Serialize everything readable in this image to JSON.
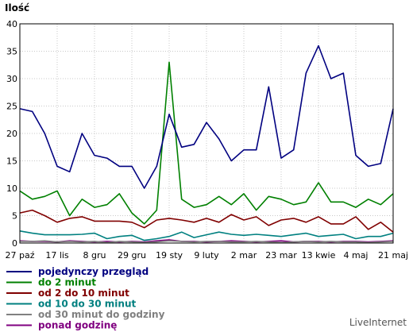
{
  "chart_data": {
    "type": "line",
    "ylabel": "Ilość",
    "xlabel": "",
    "title": "",
    "ylim": [
      0,
      40
    ],
    "yticks": [
      0,
      5,
      10,
      15,
      20,
      25,
      30,
      35,
      40
    ],
    "xtick_labels": [
      "27 paź",
      "17 lis",
      "8 gru",
      "29 gru",
      "19 sty",
      "9 luty",
      "2 mar",
      "23 mar",
      "13 kwie",
      "4 maj",
      "21 maj"
    ],
    "grid": true,
    "legend_position": "bottom-left",
    "series": [
      {
        "name": "pojedynczy przegląd",
        "color": "#000080",
        "values": [
          24.5,
          24,
          20,
          14,
          13,
          20,
          16,
          15.5,
          14,
          14,
          10,
          14,
          23.5,
          17.5,
          18,
          22,
          19,
          15,
          17,
          17,
          28.5,
          15.5,
          17,
          31,
          36,
          30,
          31,
          16,
          14,
          14.5,
          24.5
        ]
      },
      {
        "name": "do 2 minut",
        "color": "#008000",
        "values": [
          9.5,
          8,
          8.5,
          9.5,
          5,
          8,
          6.5,
          7,
          9,
          5.5,
          3.5,
          6,
          33,
          8,
          6.5,
          7,
          8.5,
          7,
          9,
          6,
          8.5,
          8,
          7,
          7.5,
          11,
          7.5,
          7.5,
          6.5,
          8,
          7,
          9
        ]
      },
      {
        "name": "od 2 do 10 minut",
        "color": "#800000",
        "values": [
          5.5,
          6,
          5,
          3.8,
          4.5,
          4.8,
          4,
          4,
          4,
          3.8,
          2.8,
          4.2,
          4.5,
          4.2,
          3.8,
          4.5,
          3.8,
          5.2,
          4.2,
          4.8,
          3.2,
          4.2,
          4.5,
          3.8,
          4.8,
          3.5,
          3.5,
          4.8,
          2.5,
          3.8,
          2
        ]
      },
      {
        "name": "od 10 do 30 minut",
        "color": "#008080",
        "values": [
          2.2,
          1.8,
          1.5,
          1.5,
          1.5,
          1.6,
          1.8,
          0.8,
          1.2,
          1.4,
          0.5,
          0.8,
          1.2,
          2,
          1,
          1.5,
          2,
          1.6,
          1.4,
          1.6,
          1.4,
          1.2,
          1.5,
          1.8,
          1.2,
          1.4,
          1.6,
          0.8,
          1.2,
          1.2,
          1.8
        ]
      },
      {
        "name": "od 30 minut do godziny",
        "color": "#808080",
        "values": [
          0.3,
          0.3,
          0.4,
          0.2,
          0.3,
          0.2,
          0.3,
          0.1,
          0.3,
          0.2,
          0.1,
          0.2,
          0.4,
          0.3,
          0.2,
          0.3,
          0.3,
          0.2,
          0.2,
          0.3,
          0.2,
          0.1,
          0.2,
          0.3,
          0.2,
          0.3,
          0.2,
          0.2,
          0.1,
          0.2,
          0.3
        ]
      },
      {
        "name": "ponad godzinę",
        "color": "#800080",
        "values": [
          0.4,
          0.3,
          0.3,
          0.2,
          0.4,
          0.3,
          0.2,
          0.3,
          0.2,
          0.3,
          0.2,
          0.4,
          0.6,
          0.3,
          0.3,
          0.2,
          0.3,
          0.4,
          0.3,
          0.2,
          0.3,
          0.4,
          0.2,
          0.3,
          0.3,
          0.2,
          0.3,
          0.3,
          0.2,
          0.3,
          0.4
        ]
      }
    ]
  },
  "credit": "LiveInternet"
}
